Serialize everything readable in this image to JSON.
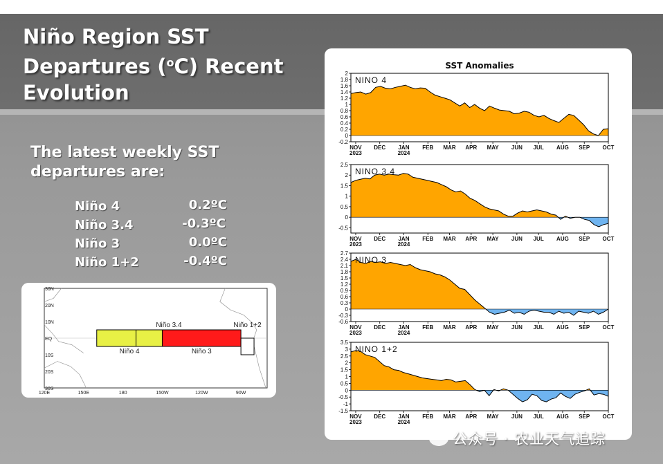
{
  "slide": {
    "title_pre": "Niño Region SST Departures (",
    "title_sup": "o",
    "title_post": "C) Recent Evolution",
    "subtitle": "The latest weekly SST departures are:",
    "readings": [
      {
        "name": "Niño 4",
        "value": "0.2ºC"
      },
      {
        "name": "Niño 3.4",
        "value": "-0.3ºC"
      },
      {
        "name": "Niño 3",
        "value": "0.0ºC"
      },
      {
        "name": "Niño 1+2",
        "value": "-0.4ºC"
      }
    ],
    "watermark": "公众号 · 农业天气追踪"
  },
  "region_map": {
    "lat_labels": [
      "30N",
      "20N",
      "10N",
      "EQ",
      "10S",
      "20S",
      "30S"
    ],
    "lon_labels": [
      "120E",
      "150E",
      "180",
      "150W",
      "120W",
      "90W"
    ],
    "regions": [
      {
        "name": "Niño 4",
        "lon": [
          160,
          210
        ],
        "lat": [
          -5,
          5
        ],
        "color": "#e8f045"
      },
      {
        "name": "Niño 3.4",
        "lon": [
          190,
          240
        ],
        "lat": [
          -5,
          5
        ],
        "color": "#e8f045"
      },
      {
        "name": "Niño 3",
        "lon": [
          210,
          270
        ],
        "lat": [
          -5,
          5
        ],
        "color": "#ff1a1a"
      },
      {
        "name": "Niño 1+2",
        "lon": [
          270,
          280
        ],
        "lat": [
          -10,
          0
        ],
        "color": "#ffffff"
      }
    ]
  },
  "chart_data": {
    "type": "area",
    "title": "SST Anomalies",
    "x_ticks": [
      {
        "label": "NOV",
        "year": "2023",
        "t": 0.02
      },
      {
        "label": "DEC",
        "year": "",
        "t": 0.12
      },
      {
        "label": "JAN",
        "year": "2024",
        "t": 0.22
      },
      {
        "label": "FEB",
        "year": "",
        "t": 0.32
      },
      {
        "label": "MAR",
        "year": "",
        "t": 0.41
      },
      {
        "label": "APR",
        "year": "",
        "t": 0.5
      },
      {
        "label": "MAY",
        "year": "",
        "t": 0.59
      },
      {
        "label": "JUN",
        "year": "",
        "t": 0.69
      },
      {
        "label": "JUL",
        "year": "",
        "t": 0.78
      },
      {
        "label": "AUG",
        "year": "",
        "t": 0.88
      },
      {
        "label": "SEP",
        "year": "",
        "t": 0.97
      },
      {
        "label": "OCT",
        "year": "",
        "t": 1.07
      }
    ],
    "positive_color": "#ffa500",
    "negative_color": "#6fb4f0",
    "panels": [
      {
        "name": "NINO 4",
        "ylim": [
          -0.2,
          2
        ],
        "yticks": [
          "2",
          "1.8",
          "1.6",
          "1.4",
          "1.2",
          "1",
          "0.8",
          "0.6",
          "0.4",
          "0.2",
          "0",
          "-0.2"
        ],
        "values": [
          1.35,
          1.38,
          1.4,
          1.33,
          1.38,
          1.55,
          1.58,
          1.52,
          1.5,
          1.55,
          1.58,
          1.62,
          1.55,
          1.5,
          1.53,
          1.52,
          1.4,
          1.3,
          1.25,
          1.2,
          1.15,
          1.05,
          0.95,
          1.05,
          0.9,
          1.0,
          0.88,
          0.8,
          0.95,
          0.88,
          0.82,
          0.8,
          0.78,
          0.7,
          0.72,
          0.78,
          0.75,
          0.65,
          0.6,
          0.65,
          0.55,
          0.48,
          0.42,
          0.55,
          0.68,
          0.65,
          0.5,
          0.35,
          0.15,
          0.05,
          0.0,
          0.2,
          0.22
        ]
      },
      {
        "name": "NINO 3.4",
        "ylim": [
          -0.75,
          2.5
        ],
        "yticks": [
          "2.5",
          "2",
          "1.5",
          "1",
          "0.5",
          "0",
          "-0.5"
        ],
        "values": [
          1.65,
          1.75,
          1.8,
          1.85,
          1.82,
          2.0,
          2.05,
          2.0,
          2.05,
          2.02,
          2.0,
          2.08,
          2.05,
          1.9,
          1.85,
          1.8,
          1.75,
          1.7,
          1.65,
          1.55,
          1.45,
          1.3,
          1.2,
          1.25,
          1.1,
          0.9,
          0.8,
          0.65,
          0.5,
          0.4,
          0.35,
          0.3,
          0.15,
          0.05,
          0.05,
          0.2,
          0.3,
          0.25,
          0.3,
          0.35,
          0.3,
          0.25,
          0.15,
          0.1,
          -0.1,
          0.05,
          -0.05,
          0.0,
          0.0,
          -0.1,
          -0.15,
          -0.35,
          -0.45,
          -0.35,
          -0.3
        ]
      },
      {
        "name": "NINO 3",
        "ylim": [
          -0.6,
          2.7
        ],
        "yticks": [
          "2.7",
          "2.4",
          "2.1",
          "1.8",
          "1.5",
          "1.2",
          "0.9",
          "0.6",
          "0.3",
          "0",
          "-0.3",
          "-0.6"
        ],
        "values": [
          2.3,
          2.4,
          2.25,
          2.2,
          2.3,
          2.25,
          2.28,
          2.2,
          2.25,
          2.2,
          2.15,
          2.1,
          2.15,
          2.0,
          1.9,
          1.85,
          1.8,
          1.7,
          1.65,
          1.55,
          1.4,
          1.2,
          1.0,
          0.95,
          0.7,
          0.45,
          0.25,
          0.05,
          -0.15,
          -0.25,
          -0.2,
          -0.15,
          -0.05,
          -0.2,
          -0.15,
          -0.25,
          -0.1,
          -0.05,
          -0.1,
          -0.15,
          -0.15,
          -0.25,
          -0.1,
          -0.2,
          -0.15,
          -0.3,
          -0.1,
          -0.15,
          -0.2,
          -0.1,
          -0.25,
          -0.15,
          0.0
        ]
      },
      {
        "name": "NINO 1+2",
        "ylim": [
          -1.5,
          3.5
        ],
        "yticks": [
          "3.5",
          "3",
          "2.5",
          "2",
          "1.5",
          "1",
          "0.5",
          "0",
          "-0.5",
          "-1",
          "-1.5"
        ],
        "values": [
          2.8,
          2.9,
          2.85,
          2.6,
          2.5,
          2.4,
          2.1,
          1.8,
          1.7,
          1.5,
          1.45,
          1.3,
          1.2,
          1.1,
          1.0,
          0.9,
          0.85,
          0.8,
          0.75,
          0.7,
          0.8,
          0.75,
          0.6,
          0.65,
          0.7,
          0.4,
          0.05,
          -0.1,
          0.0,
          -0.4,
          0.05,
          -0.05,
          0.1,
          0.0,
          -0.3,
          -0.6,
          -0.85,
          -0.7,
          -0.3,
          -0.4,
          -0.75,
          -0.85,
          -0.65,
          -0.55,
          -0.2,
          -0.45,
          -0.6,
          -0.3,
          -0.15,
          -0.05,
          0.1,
          -0.35,
          -0.25,
          -0.3,
          -0.45
        ]
      }
    ]
  }
}
